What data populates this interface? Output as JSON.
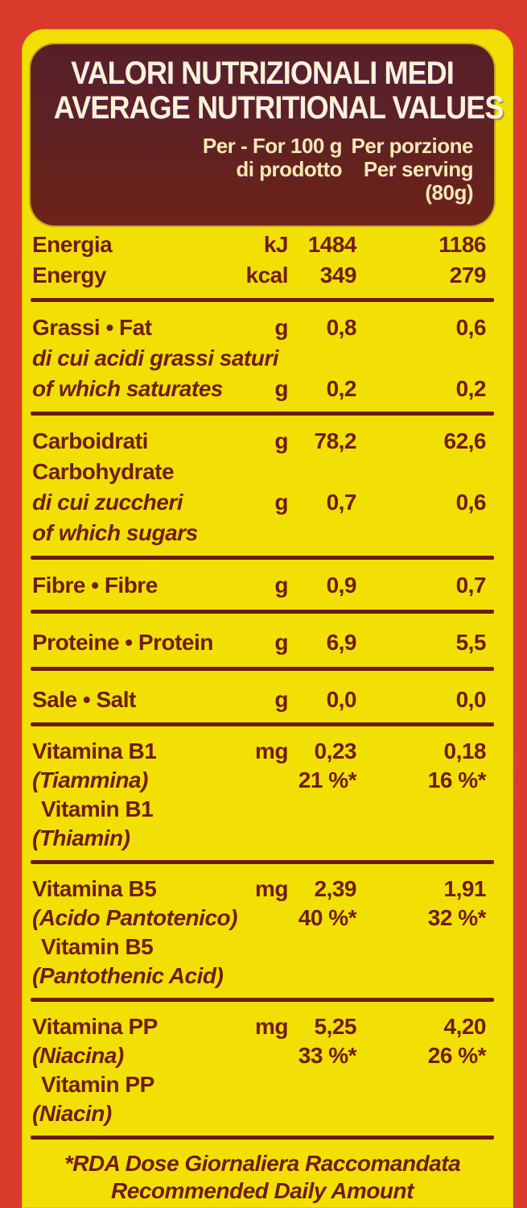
{
  "colors": {
    "frame_red": "#d93a2b",
    "panel_yellow": "#f2e004",
    "header_maroon": "#5e2124",
    "text_brick": "#701c12",
    "title_cream": "#fdf2d6",
    "colhead_pale_yellow": "#fbe8ad"
  },
  "header": {
    "title1": "VALORI NUTRIZIONALI MEDI",
    "title2": "AVERAGE NUTRITIONAL VALUES",
    "per100": {
      "l1": "Per - For  100 g",
      "l2": "di prodotto"
    },
    "serving": {
      "l1": "Per porzione",
      "l2": "Per serving",
      "l3": "(80g)"
    }
  },
  "sections": [
    {
      "id": "energy",
      "lines": [
        {
          "label": "Energia",
          "unit": "kJ",
          "per100": "1484",
          "serving": "1186"
        },
        {
          "label": "Energy",
          "unit": "kcal",
          "per100": "349",
          "serving": "279"
        }
      ]
    },
    {
      "id": "fat",
      "lines": [
        {
          "label": "Grassi • Fat",
          "unit": "g",
          "per100": "0,8",
          "serving": "0,6"
        },
        {
          "label": "di cui acidi grassi saturi"
        },
        {
          "label": "of which saturates",
          "unit": "g",
          "per100": "0,2",
          "serving": "0,2"
        }
      ]
    },
    {
      "id": "carbohydrate",
      "lines": [
        {
          "label": "Carboidrati",
          "unit": "g",
          "per100": "78,2",
          "serving": "62,6"
        },
        {
          "label": "Carbohydrate"
        },
        {
          "label": "di cui zuccheri",
          "unit": "g",
          "per100": "0,7",
          "serving": "0,6"
        },
        {
          "label": "of which sugars"
        }
      ]
    },
    {
      "id": "fibre",
      "lines": [
        {
          "label": "Fibre • Fibre",
          "unit": "g",
          "per100": "0,9",
          "serving": "0,7"
        }
      ]
    },
    {
      "id": "protein",
      "lines": [
        {
          "label": "Proteine • Protein",
          "unit": "g",
          "per100": "6,9",
          "serving": "5,5"
        }
      ]
    },
    {
      "id": "salt",
      "lines": [
        {
          "label": "Sale • Salt",
          "unit": "g",
          "per100": "0,0",
          "serving": "0,0"
        }
      ]
    },
    {
      "id": "vitamin-b1",
      "lines": [
        {
          "label": "Vitamina B1",
          "unit": "mg",
          "per100": "0,23",
          "serving": "0,18"
        },
        {
          "label": "(Tiammina)",
          "per100": "21 %*",
          "serving": "16 %*"
        },
        {
          "label": "Vitamin B1"
        },
        {
          "label": "(Thiamin)"
        }
      ]
    },
    {
      "id": "vitamin-b5",
      "lines": [
        {
          "label": "Vitamina B5",
          "unit": "mg",
          "per100": "2,39",
          "serving": "1,91"
        },
        {
          "label": "(Acido Pantotenico)",
          "per100": "40 %*",
          "serving": "32 %*"
        },
        {
          "label": "Vitamin B5"
        },
        {
          "label": "(Pantothenic Acid)"
        }
      ]
    },
    {
      "id": "vitamin-pp",
      "lines": [
        {
          "label": "Vitamina PP",
          "unit": "mg",
          "per100": "5,25",
          "serving": "4,20"
        },
        {
          "label": "(Niacina)",
          "per100": "33 %*",
          "serving": "26 %*"
        },
        {
          "label": "Vitamin PP"
        },
        {
          "label": "(Niacin)"
        }
      ]
    }
  ],
  "footnote": {
    "line1": "*RDA Dose Giornaliera Raccomandata",
    "line2": "Recommended Daily Amount"
  }
}
